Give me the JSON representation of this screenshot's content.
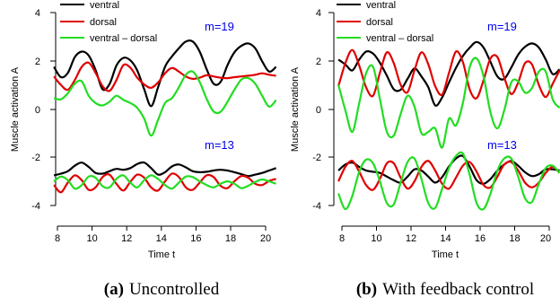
{
  "chart_data": [
    {
      "type": "line",
      "caption_tag": "(a)",
      "caption_text": "Uncontrolled",
      "xlabel": "Time t",
      "ylabel": "Muscle activation A",
      "xlim": [
        7.8,
        20.6
      ],
      "ylim": [
        -4.3,
        4.3
      ],
      "xticks": [
        8,
        10,
        12,
        14,
        16,
        18,
        20
      ],
      "yticks": [
        -4,
        -2,
        0,
        2,
        4
      ],
      "legend": {
        "placement": "top-left",
        "entries": [
          "ventral",
          "dorsal",
          "ventral – dorsal"
        ]
      },
      "annotations": [
        {
          "text": "m=19",
          "x": 17.7,
          "y": 3.4
        },
        {
          "text": "m=13",
          "x": 17.3,
          "y": -1.5
        }
      ],
      "series": [
        {
          "name": "ventral",
          "color": "#000000",
          "x": [
            7.8,
            8.2,
            8.6,
            9,
            9.4,
            9.8,
            10.2,
            10.6,
            11,
            11.4,
            11.8,
            12.2,
            12.6,
            13,
            13.4,
            13.8,
            14.2,
            14.6,
            15,
            15.4,
            15.8,
            16.2,
            16.6,
            17,
            17.4,
            17.8,
            18.2,
            18.6,
            19,
            19.4,
            19.8,
            20.2,
            20.6
          ],
          "y": [
            1.75,
            1.32,
            1.5,
            2.15,
            2.38,
            2.22,
            1.62,
            0.82,
            1.03,
            1.8,
            2.12,
            2.02,
            1.6,
            0.82,
            0.12,
            0.9,
            1.75,
            2.18,
            2.52,
            2.8,
            2.8,
            2.38,
            1.65,
            1.05,
            1.12,
            1.82,
            2.35,
            2.62,
            2.72,
            2.52,
            1.98,
            1.55,
            1.75
          ]
        },
        {
          "name": "dorsal",
          "color": "#e00000",
          "x": [
            7.8,
            8.2,
            8.6,
            9,
            9.4,
            9.8,
            10.2,
            10.6,
            11,
            11.4,
            11.8,
            12.2,
            12.6,
            13,
            13.4,
            13.8,
            14.2,
            14.6,
            15,
            15.4,
            15.8,
            16.2,
            16.6,
            17,
            17.4,
            17.8,
            18.2,
            18.6,
            19,
            19.4,
            19.8,
            20.2,
            20.6
          ],
          "y": [
            1.35,
            1.0,
            0.8,
            1.2,
            1.75,
            1.92,
            1.5,
            0.95,
            0.75,
            1.2,
            1.82,
            1.72,
            1.3,
            1.02,
            0.88,
            1.1,
            1.48,
            1.7,
            1.55,
            1.35,
            1.25,
            1.3,
            1.4,
            1.35,
            1.3,
            1.28,
            1.32,
            1.35,
            1.38,
            1.42,
            1.48,
            1.42,
            1.38
          ]
        },
        {
          "name": "ventral – dorsal",
          "color": "#22dd22",
          "x": [
            7.8,
            8.2,
            8.6,
            9,
            9.4,
            9.8,
            10.2,
            10.6,
            11,
            11.4,
            11.8,
            12.2,
            12.6,
            13,
            13.4,
            13.8,
            14.2,
            14.6,
            15,
            15.4,
            15.8,
            16.2,
            16.6,
            17,
            17.4,
            17.8,
            18.2,
            18.6,
            19,
            19.4,
            19.8,
            20.2,
            20.6
          ],
          "y": [
            0.45,
            0.4,
            0.65,
            1.05,
            1.15,
            0.55,
            0.25,
            0.15,
            0.3,
            0.55,
            0.38,
            0.25,
            0.05,
            -0.4,
            -1.1,
            -0.45,
            0.25,
            0.45,
            0.9,
            1.42,
            1.55,
            1.12,
            0.42,
            -0.1,
            -0.12,
            0.3,
            0.8,
            1.22,
            1.28,
            1.05,
            0.55,
            0.1,
            0.37
          ]
        },
        {
          "name": "ventral",
          "color": "#000000",
          "x": [
            7.8,
            8.2,
            8.6,
            9,
            9.4,
            9.8,
            10.2,
            10.6,
            11,
            11.4,
            11.8,
            12.2,
            12.6,
            13,
            13.4,
            13.8,
            14.2,
            14.6,
            15,
            15.4,
            15.8,
            16.2,
            16.6,
            17,
            17.4,
            17.8,
            18.2,
            18.6,
            19,
            19.4,
            19.8,
            20.2,
            20.6
          ],
          "y": [
            -2.75,
            -2.68,
            -2.58,
            -2.35,
            -2.22,
            -2.4,
            -2.65,
            -2.68,
            -2.58,
            -2.48,
            -2.52,
            -2.45,
            -2.28,
            -2.22,
            -2.45,
            -2.72,
            -2.62,
            -2.38,
            -2.3,
            -2.42,
            -2.58,
            -2.62,
            -2.6,
            -2.55,
            -2.52,
            -2.55,
            -2.62,
            -2.7,
            -2.78,
            -2.72,
            -2.65,
            -2.55,
            -2.45
          ]
        },
        {
          "name": "dorsal",
          "color": "#e00000",
          "x": [
            7.8,
            8.2,
            8.6,
            9,
            9.4,
            9.8,
            10.2,
            10.6,
            11,
            11.4,
            11.8,
            12.2,
            12.6,
            13,
            13.4,
            13.8,
            14.2,
            14.6,
            15,
            15.4,
            15.8,
            16.2,
            16.6,
            17,
            17.4,
            17.8,
            18.2,
            18.6,
            19,
            19.4,
            19.8,
            20.2,
            20.6
          ],
          "y": [
            -3.15,
            -3.45,
            -3.05,
            -2.75,
            -2.95,
            -3.35,
            -3.25,
            -2.82,
            -2.72,
            -3.1,
            -3.38,
            -3.02,
            -2.72,
            -2.85,
            -3.25,
            -3.38,
            -3.0,
            -2.68,
            -2.82,
            -3.25,
            -3.35,
            -3.05,
            -2.75,
            -2.82,
            -3.18,
            -3.28,
            -3.0,
            -2.78,
            -2.85,
            -3.1,
            -3.15,
            -2.98,
            -2.9
          ]
        },
        {
          "name": "ventral – dorsal",
          "color": "#22dd22",
          "x": [
            7.8,
            8.2,
            8.6,
            9,
            9.4,
            9.8,
            10.2,
            10.6,
            11,
            11.4,
            11.8,
            12.2,
            12.6,
            13,
            13.4,
            13.8,
            14.2,
            14.6,
            15,
            15.4,
            15.8,
            16.2,
            16.6,
            17,
            17.4,
            17.8,
            18.2,
            18.6,
            19,
            19.4,
            19.8,
            20.2,
            20.6
          ],
          "y": [
            -3.0,
            -2.8,
            -2.95,
            -3.3,
            -3.15,
            -2.8,
            -2.85,
            -3.2,
            -3.25,
            -2.9,
            -2.75,
            -3.05,
            -3.25,
            -2.95,
            -2.75,
            -2.9,
            -3.15,
            -3.3,
            -3.05,
            -2.8,
            -2.82,
            -3.0,
            -3.15,
            -3.25,
            -3.1,
            -3.0,
            -3.1,
            -3.28,
            -3.18,
            -3.02,
            -2.92,
            -3.0,
            -3.1
          ]
        }
      ]
    },
    {
      "type": "line",
      "caption_tag": "(b)",
      "caption_text": "With feedback control",
      "xlabel": "Time t",
      "ylabel": "Muscle activation A",
      "xlim": [
        7.8,
        20.6
      ],
      "ylim": [
        -4.3,
        4.3
      ],
      "xticks": [
        8,
        10,
        12,
        14,
        16,
        18,
        20
      ],
      "yticks": [
        -4,
        -2,
        0,
        2,
        4
      ],
      "legend": {
        "placement": "top-left",
        "entries": [
          "ventral",
          "dorsal",
          "ventral – dorsal"
        ]
      },
      "annotations": [
        {
          "text": "m=19",
          "x": 17.7,
          "y": 3.4
        },
        {
          "text": "m=13",
          "x": 17.3,
          "y": -1.5
        }
      ],
      "series": [
        {
          "name": "ventral",
          "color": "#000000",
          "x": [
            7.8,
            8.2,
            8.6,
            9,
            9.4,
            9.8,
            10.2,
            10.6,
            11,
            11.4,
            11.8,
            12.2,
            12.6,
            13,
            13.4,
            13.8,
            14.2,
            14.6,
            15,
            15.4,
            15.8,
            16.2,
            16.6,
            17,
            17.4,
            17.8,
            18.2,
            18.6,
            19,
            19.4,
            19.8,
            20.2,
            20.6
          ],
          "y": [
            2.05,
            1.85,
            1.6,
            2.05,
            2.38,
            2.3,
            1.92,
            1.38,
            0.82,
            0.8,
            1.25,
            1.68,
            1.35,
            0.9,
            0.15,
            0.48,
            1.1,
            1.7,
            2.2,
            2.55,
            2.78,
            2.55,
            1.95,
            1.35,
            1.25,
            1.72,
            2.25,
            2.58,
            2.72,
            2.55,
            2.05,
            1.45,
            1.65
          ]
        },
        {
          "name": "dorsal",
          "color": "#e00000",
          "x": [
            7.8,
            8.2,
            8.6,
            9,
            9.4,
            9.8,
            10.2,
            10.6,
            11,
            11.4,
            11.8,
            12.2,
            12.6,
            13,
            13.4,
            13.8,
            14.2,
            14.6,
            15,
            15.4,
            15.8,
            16.2,
            16.6,
            17,
            17.4,
            17.8,
            18.2,
            18.6,
            19,
            19.4,
            19.8,
            20.2,
            20.6
          ],
          "y": [
            0.95,
            1.9,
            2.45,
            1.8,
            0.9,
            0.55,
            1.5,
            2.35,
            1.9,
            1.0,
            0.7,
            1.6,
            2.35,
            1.85,
            0.95,
            0.6,
            1.5,
            2.38,
            1.95,
            0.8,
            0.45,
            1.2,
            2.1,
            2.15,
            1.3,
            0.62,
            1.1,
            1.9,
            1.85,
            1.0,
            0.5,
            1.05,
            1.6
          ]
        },
        {
          "name": "ventral – dorsal",
          "color": "#22dd22",
          "x": [
            7.8,
            8.2,
            8.6,
            9,
            9.4,
            9.8,
            10.2,
            10.6,
            11,
            11.4,
            11.8,
            12.2,
            12.6,
            13,
            13.4,
            13.8,
            14.2,
            14.6,
            15,
            15.4,
            15.8,
            16.2,
            16.6,
            17,
            17.4,
            17.8,
            18.2,
            18.6,
            19,
            19.4,
            19.8,
            20.2,
            20.6
          ],
          "y": [
            1.0,
            -0.05,
            -0.95,
            0.25,
            1.48,
            1.75,
            0.42,
            -0.95,
            -1.1,
            -0.2,
            0.55,
            0.1,
            -1.0,
            -0.95,
            -0.8,
            -1.6,
            -0.4,
            -0.68,
            0.25,
            1.75,
            2.1,
            1.35,
            -0.15,
            -0.8,
            -0.05,
            1.1,
            1.15,
            0.68,
            0.87,
            1.55,
            1.55,
            0.4,
            0.05
          ]
        },
        {
          "name": "ventral",
          "color": "#000000",
          "x": [
            7.8,
            8.2,
            8.6,
            9,
            9.4,
            9.8,
            10.2,
            10.6,
            11,
            11.4,
            11.8,
            12.2,
            12.6,
            13,
            13.4,
            13.8,
            14.2,
            14.6,
            15,
            15.4,
            15.8,
            16.2,
            16.6,
            17,
            17.4,
            17.8,
            18.2,
            18.6,
            19,
            19.4,
            19.8,
            20.2,
            20.6
          ],
          "y": [
            -2.55,
            -2.3,
            -2.22,
            -2.4,
            -2.55,
            -2.6,
            -2.65,
            -2.8,
            -2.95,
            -3.05,
            -2.8,
            -2.5,
            -2.55,
            -2.8,
            -3.05,
            -2.82,
            -2.38,
            -2.05,
            -1.95,
            -2.4,
            -2.95,
            -3.1,
            -2.9,
            -2.55,
            -2.3,
            -2.15,
            -2.35,
            -2.62,
            -2.78,
            -2.7,
            -2.5,
            -2.5,
            -2.55
          ]
        },
        {
          "name": "dorsal",
          "color": "#e00000",
          "x": [
            7.8,
            8.2,
            8.6,
            9,
            9.4,
            9.8,
            10.2,
            10.6,
            11,
            11.4,
            11.8,
            12.2,
            12.6,
            13,
            13.4,
            13.8,
            14.2,
            14.6,
            15,
            15.4,
            15.8,
            16.2,
            16.6,
            17,
            17.4,
            17.8,
            18.2,
            18.6,
            19,
            19.4,
            19.8,
            20.2,
            20.6
          ],
          "y": [
            -3.0,
            -2.4,
            -2.15,
            -2.6,
            -3.15,
            -3.35,
            -2.9,
            -2.25,
            -2.25,
            -2.85,
            -3.3,
            -3.0,
            -2.4,
            -2.15,
            -2.55,
            -3.1,
            -3.3,
            -2.85,
            -2.35,
            -2.2,
            -2.6,
            -3.15,
            -3.25,
            -2.8,
            -2.3,
            -2.2,
            -2.55,
            -3.05,
            -3.25,
            -3.05,
            -2.65,
            -2.4,
            -2.65
          ]
        },
        {
          "name": "ventral – dorsal",
          "color": "#22dd22",
          "x": [
            7.8,
            8.2,
            8.6,
            9,
            9.4,
            9.8,
            10.2,
            10.6,
            11,
            11.4,
            11.8,
            12.2,
            12.6,
            13,
            13.4,
            13.8,
            14.2,
            14.6,
            15,
            15.4,
            15.8,
            16.2,
            16.6,
            17,
            17.4,
            17.8,
            18.2,
            18.6,
            19,
            19.4,
            19.8,
            20.2,
            20.6
          ],
          "y": [
            -3.5,
            -4.15,
            -3.6,
            -2.6,
            -2.1,
            -2.25,
            -3.0,
            -3.9,
            -3.95,
            -3.05,
            -2.2,
            -2.05,
            -2.9,
            -3.9,
            -4.1,
            -3.3,
            -2.45,
            -1.95,
            -1.85,
            -2.75,
            -3.9,
            -4.15,
            -3.5,
            -2.55,
            -2.05,
            -2.05,
            -2.8,
            -3.7,
            -3.85,
            -3.1,
            -2.45,
            -2.35,
            -2.65
          ]
        }
      ]
    }
  ]
}
